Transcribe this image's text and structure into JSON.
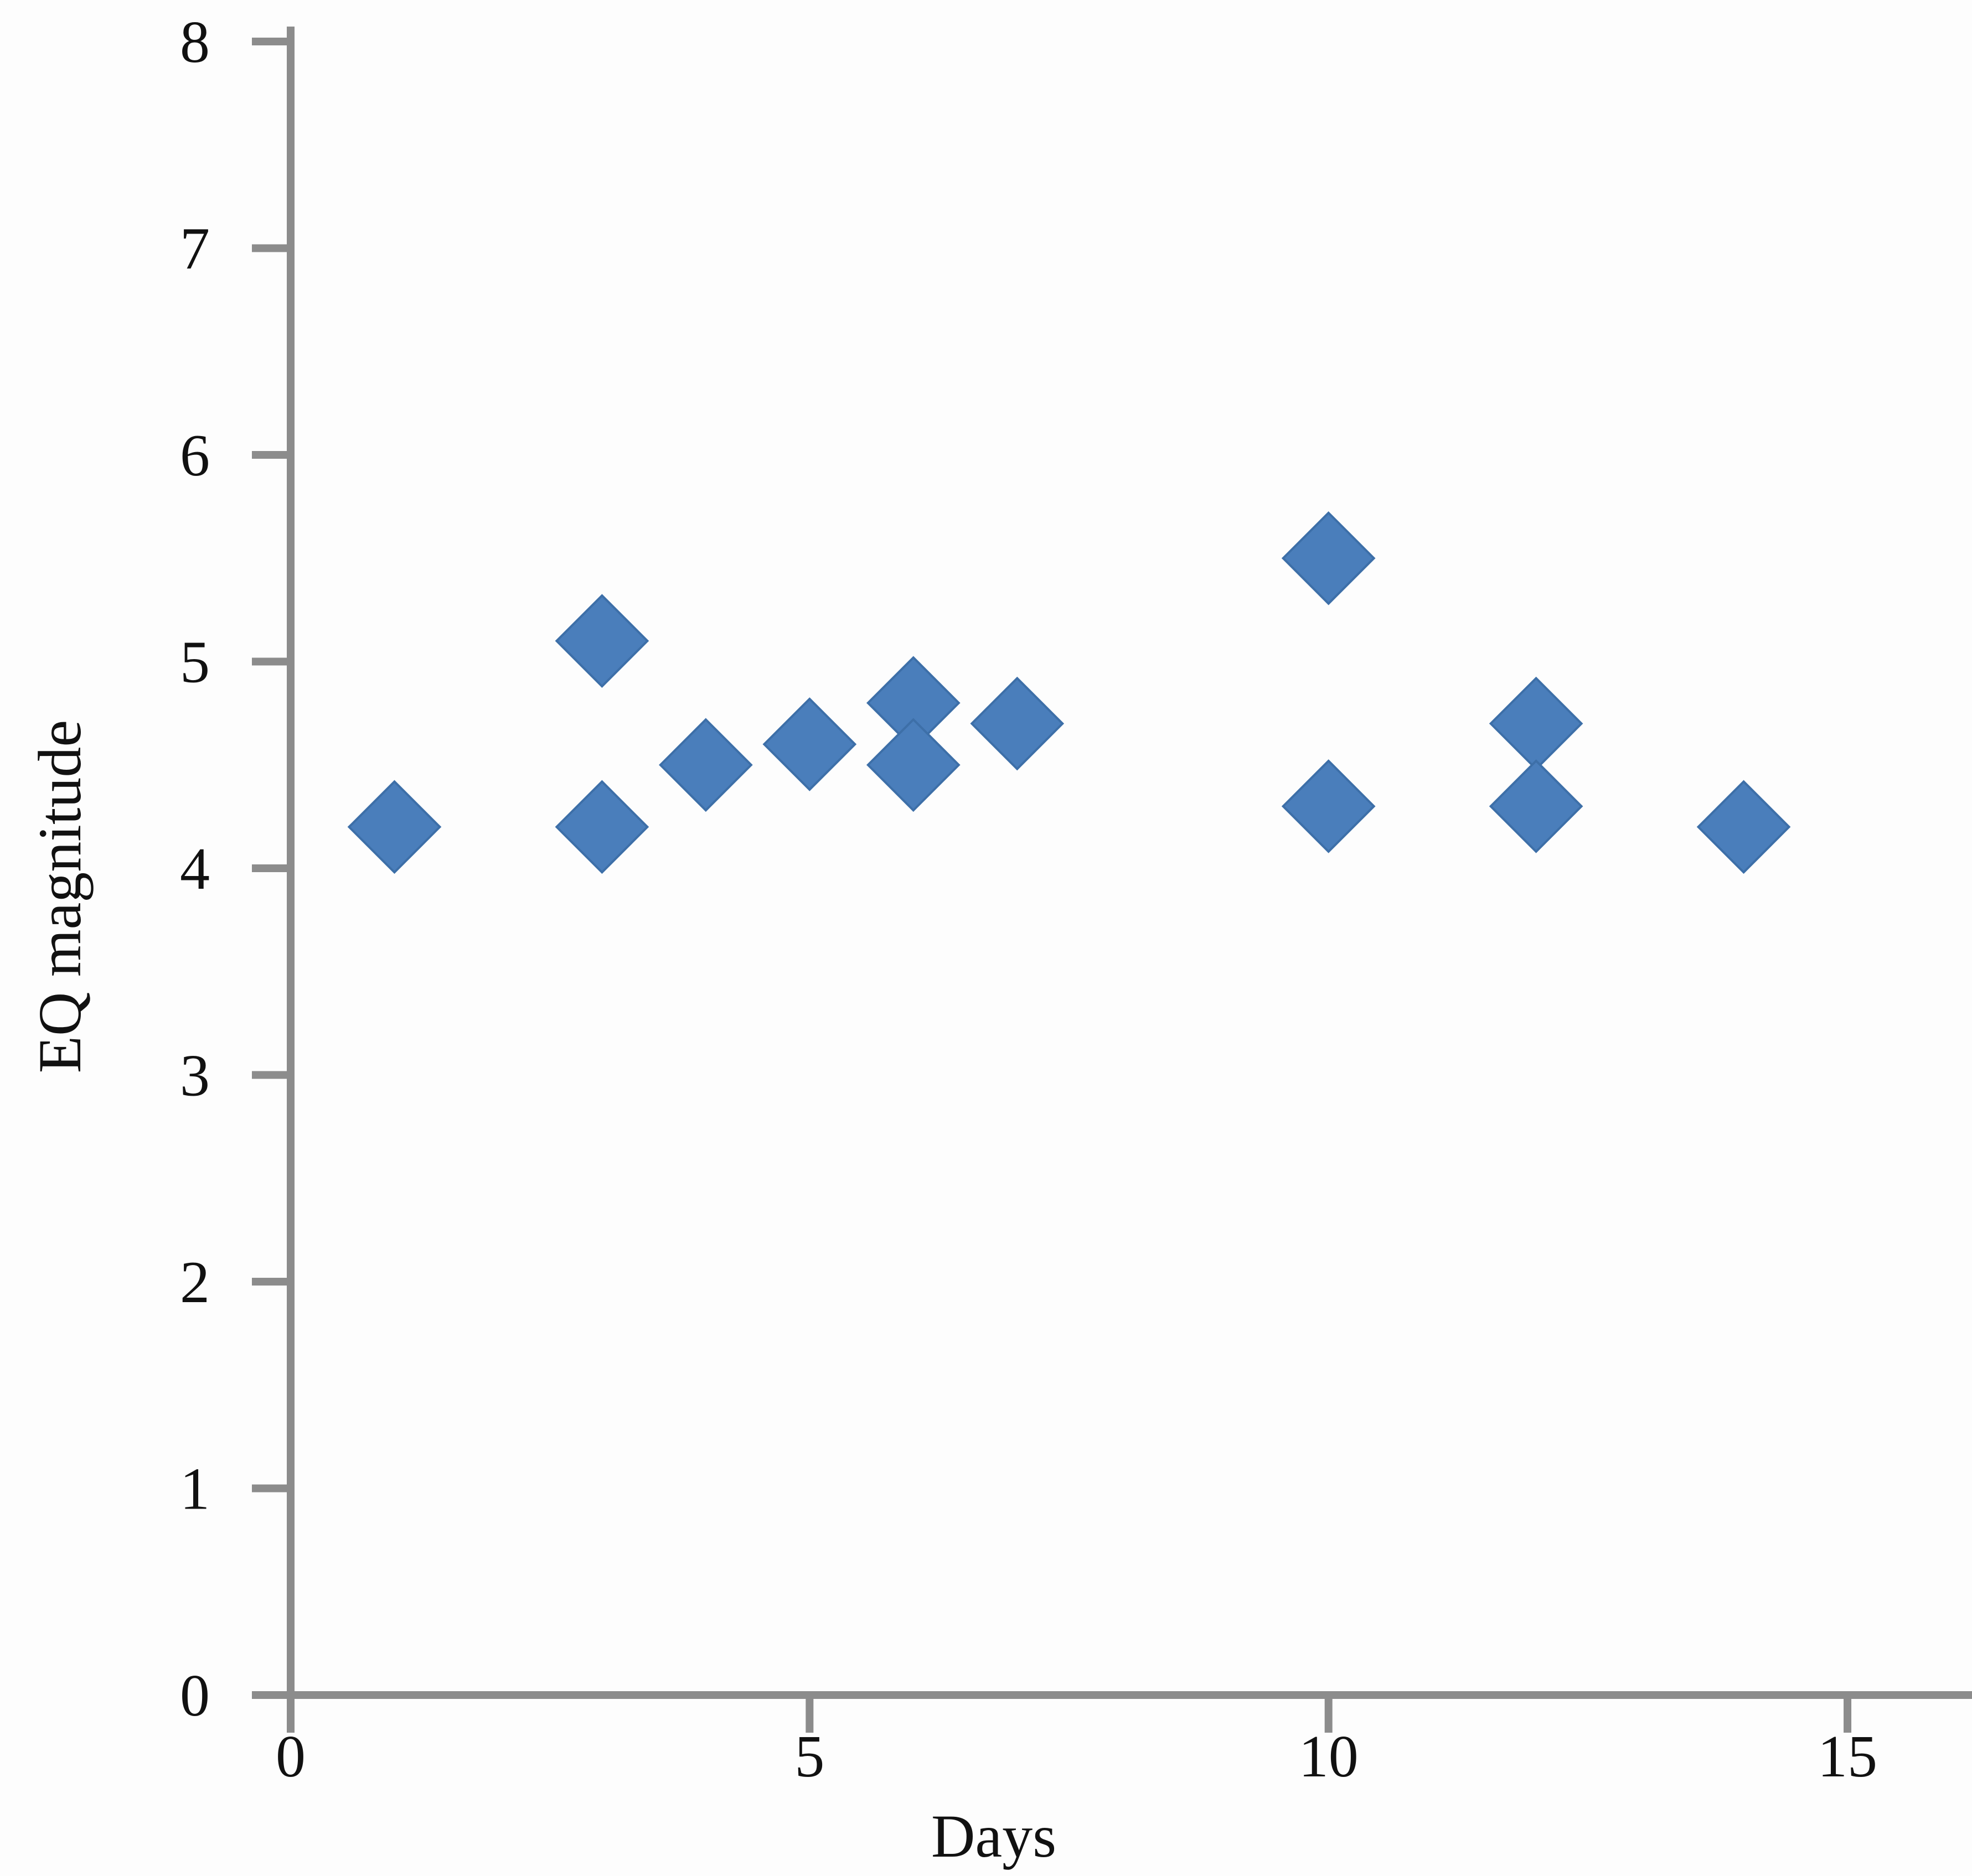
{
  "chart_data": {
    "type": "scatter",
    "title": "",
    "xlabel": "Days",
    "ylabel": "EQ magnitude",
    "xlim": [
      0,
      16.2
    ],
    "ylim": [
      0,
      8
    ],
    "xticks": [
      0,
      5,
      10,
      15
    ],
    "yticks": [
      0,
      1,
      2,
      3,
      4,
      5,
      6,
      7,
      8
    ],
    "x_tick_labels": [
      "0",
      "5",
      "10",
      "15"
    ],
    "y_tick_labels": [
      "0",
      "1",
      "2",
      "3",
      "4",
      "5",
      "6",
      "7",
      "8"
    ],
    "grid": false,
    "legend": "none",
    "marker": "diamond",
    "series": [
      {
        "color": "#4a7ebb",
        "points": [
          {
            "x": 1,
            "y": 4.2
          },
          {
            "x": 3,
            "y": 5.1
          },
          {
            "x": 3,
            "y": 4.2
          },
          {
            "x": 4,
            "y": 4.5
          },
          {
            "x": 5,
            "y": 4.6
          },
          {
            "x": 6,
            "y": 4.8
          },
          {
            "x": 6,
            "y": 4.5
          },
          {
            "x": 7,
            "y": 4.7
          },
          {
            "x": 10,
            "y": 5.5
          },
          {
            "x": 10,
            "y": 4.3
          },
          {
            "x": 12,
            "y": 4.7
          },
          {
            "x": 12,
            "y": 4.3
          },
          {
            "x": 14,
            "y": 4.2
          }
        ]
      }
    ],
    "axis_color": "#8c8c8c"
  }
}
